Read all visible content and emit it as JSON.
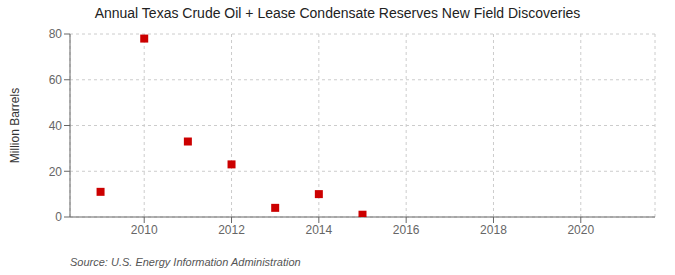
{
  "chart_data": {
    "type": "scatter",
    "title": "Annual Texas Crude Oil + Lease Condensate Reserves New Field Discoveries",
    "ylabel": "Million Barrels",
    "annotation": "Source: U.S. Energy Information Administration",
    "x": [
      2009,
      2010,
      2011,
      2012,
      2013,
      2014,
      2015
    ],
    "values": [
      11,
      78,
      33,
      23,
      4,
      10,
      1
    ],
    "color": "#cc0000",
    "marker": "square",
    "xlim": [
      2008.3,
      2021.7
    ],
    "ylim": [
      0,
      80
    ],
    "xticks": [
      2010,
      2012,
      2014,
      2016,
      2018,
      2020
    ],
    "yticks": [
      0,
      20,
      40,
      60,
      80
    ],
    "grid": true
  }
}
